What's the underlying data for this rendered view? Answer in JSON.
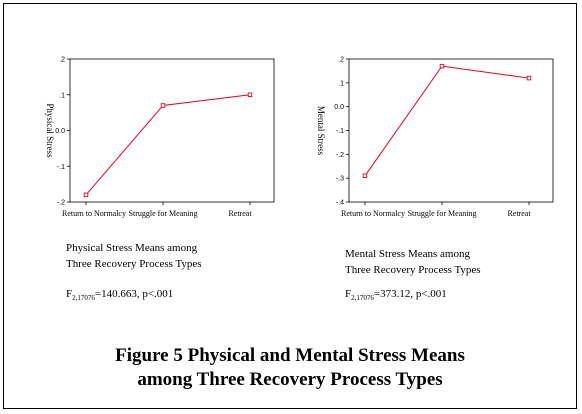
{
  "chart_data": [
    {
      "type": "line",
      "categories": [
        "Return to Normalcy",
        "Struggle for Meaning",
        "Retreat"
      ],
      "series": [
        {
          "values": [
            -0.18,
            0.07,
            0.1
          ]
        }
      ],
      "ylabel": "Physical Stress",
      "xlabel": "",
      "ylim": [
        -0.2,
        0.2
      ],
      "yticks": [
        ".2",
        ".1",
        "0.0",
        "-.1",
        "-.2"
      ],
      "color": "#e8001c",
      "caption_line1": "Physical Stress Means among",
      "caption_line2": "Three Recovery Process Types",
      "stat_prefix": "F",
      "stat_sub": "2,17076",
      "stat_rest": "=140.663, p<.001"
    },
    {
      "type": "line",
      "categories": [
        "Return to Normalcy",
        "Struggle for Meaning",
        "Retreat"
      ],
      "series": [
        {
          "values": [
            -0.29,
            0.17,
            0.12
          ]
        }
      ],
      "ylabel": "Mental Stress",
      "xlabel": "",
      "ylim": [
        -0.4,
        0.2
      ],
      "yticks": [
        ".2",
        ".1",
        "0.0",
        "-.1",
        "-.2",
        "-.3",
        "-.4"
      ],
      "color": "#e8001c",
      "caption_line1": "Mental Stress Means among",
      "caption_line2": "Three Recovery Process Types",
      "stat_prefix": "F",
      "stat_sub": "2,17076",
      "stat_rest": "=373.12, p<.001"
    }
  ],
  "figure_title_line1": "Figure 5 Physical and Mental Stress Means",
  "figure_title_line2": "among Three Recovery Process Types"
}
